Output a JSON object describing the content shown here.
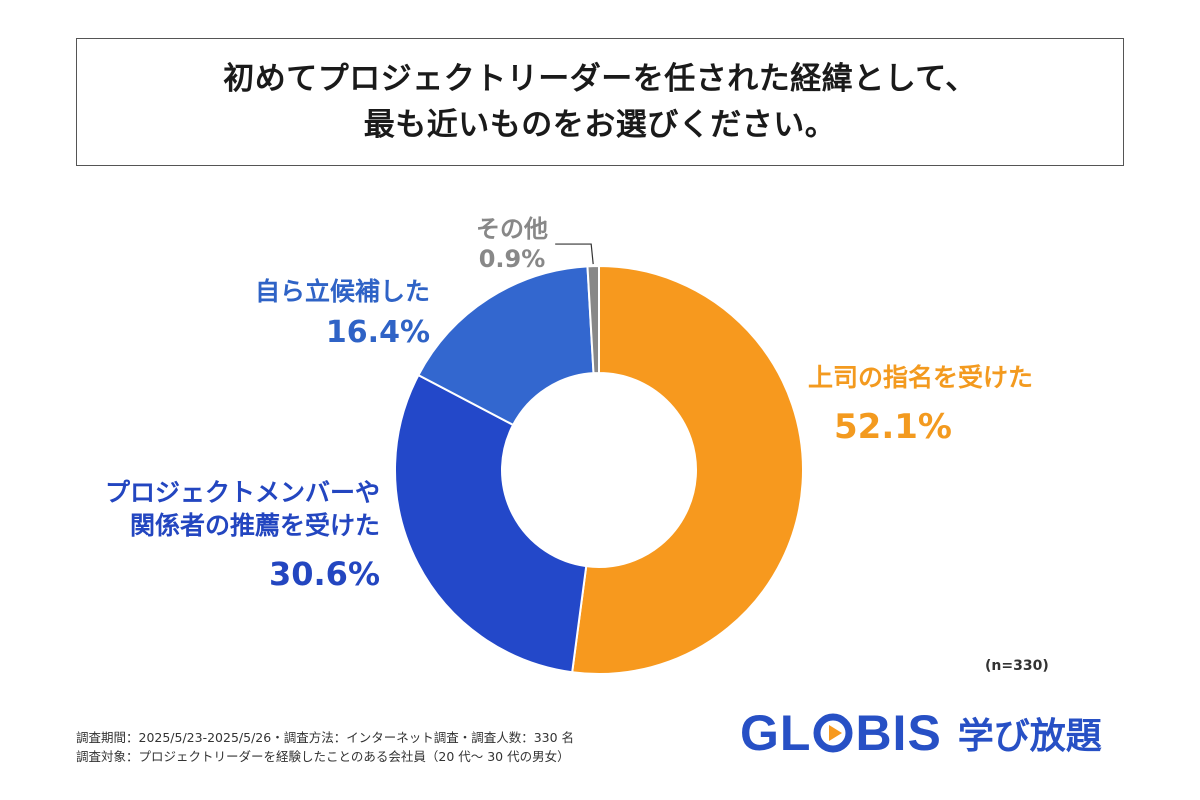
{
  "title": {
    "line1": "初めてプロジェクトリーダーを任された経緯として、",
    "line2": "最も近いものをお選びください。"
  },
  "chart_data": {
    "type": "pie",
    "donut": true,
    "slices": [
      {
        "label": "上司の指名を受けた",
        "value": 52.1,
        "value_label": "52.1%",
        "color": "#f7991e"
      },
      {
        "label_lines": [
          "プロジェクトメンバーや",
          "関係者の推薦を受けた"
        ],
        "value": 30.6,
        "value_label": "30.6%",
        "color": "#2348c9"
      },
      {
        "label": "自ら立候補した",
        "value": 16.4,
        "value_label": "16.4%",
        "color": "#3367cf"
      },
      {
        "label": "その他",
        "value": 0.9,
        "value_label": "0.9%",
        "color": "#888888"
      }
    ],
    "n_note": "(n=330)"
  },
  "footer": {
    "line1": "調査期間：2025/5/23-2025/5/26・調査方法：インターネット調査・調査人数：330 名",
    "line2": "調査対象：プロジェクトリーダーを経験したことのある会社員（20 代～ 30 代の男女）"
  },
  "logo": {
    "brand": "GLOBIS",
    "sub": "学び放題",
    "color": "#2750c5"
  }
}
